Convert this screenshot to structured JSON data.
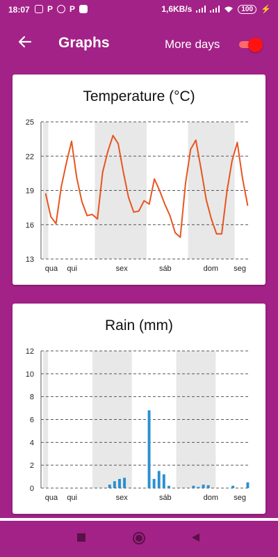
{
  "status_bar": {
    "time": "18:07",
    "left_icons": [
      "image-icon",
      "p-app-icon",
      "whatsapp-icon",
      "p-app-icon",
      "office-icon"
    ],
    "network_speed": "1,6KB/s",
    "battery": "100"
  },
  "app_bar": {
    "title": "Graphs",
    "more_days_label": "More days",
    "more_days_on": true
  },
  "colors": {
    "background": "#a32287",
    "temperature_line": "#e8541e",
    "rain_bar": "#2a8fd0",
    "weekend_shade": "#e8e8e8",
    "toggle": "#ff1212"
  },
  "temperature_chart": {
    "title": "Temperature (°C)",
    "chart_data": {
      "type": "line",
      "ylim": [
        13,
        25
      ],
      "yticks": [
        "13",
        "16",
        "19",
        "22",
        "25"
      ],
      "xticks": [
        "qua",
        "qui",
        "sex",
        "sáb",
        "dom",
        "seg"
      ],
      "grid": true,
      "values": [
        18.7,
        16.7,
        16.1,
        19.3,
        21.4,
        23.3,
        20.1,
        18.0,
        16.8,
        16.9,
        16.5,
        20.6,
        22.4,
        23.8,
        23.1,
        20.6,
        18.4,
        17.1,
        17.2,
        18.1,
        17.8,
        20.0,
        19.0,
        17.8,
        16.8,
        15.3,
        14.9,
        19.6,
        22.6,
        23.4,
        20.9,
        18.2,
        16.5,
        15.2,
        15.2,
        18.9,
        21.6,
        23.2,
        20.1,
        17.7
      ],
      "shaded_periods": [
        [
          0,
          1
        ],
        [
          10,
          20
        ],
        [
          28,
          37
        ]
      ]
    }
  },
  "rain_chart": {
    "title": "Rain (mm)",
    "chart_data": {
      "type": "bar",
      "ylim": [
        0,
        12
      ],
      "yticks": [
        "0",
        "2",
        "4",
        "6",
        "8",
        "10",
        "12"
      ],
      "xticks": [
        "qua",
        "qui",
        "sex",
        "sáb",
        "dom",
        "seg"
      ],
      "grid": true,
      "values": [
        0,
        0,
        0,
        0,
        0,
        0,
        0,
        0,
        0,
        0,
        0,
        0,
        0,
        0.3,
        0.6,
        0.8,
        0.9,
        0,
        0,
        0,
        0,
        6.8,
        0.8,
        1.5,
        1.2,
        0.2,
        0,
        0,
        0,
        0,
        0.2,
        0.1,
        0.3,
        0.25,
        0,
        0,
        0,
        0,
        0.2,
        0,
        0,
        0.5
      ],
      "shaded_periods": [
        [
          0,
          1
        ],
        [
          10,
          18
        ],
        [
          27,
          35
        ]
      ]
    }
  },
  "nav_bar": {
    "buttons": [
      "recents-square-icon",
      "home-circle-icon",
      "back-triangle-icon"
    ]
  }
}
